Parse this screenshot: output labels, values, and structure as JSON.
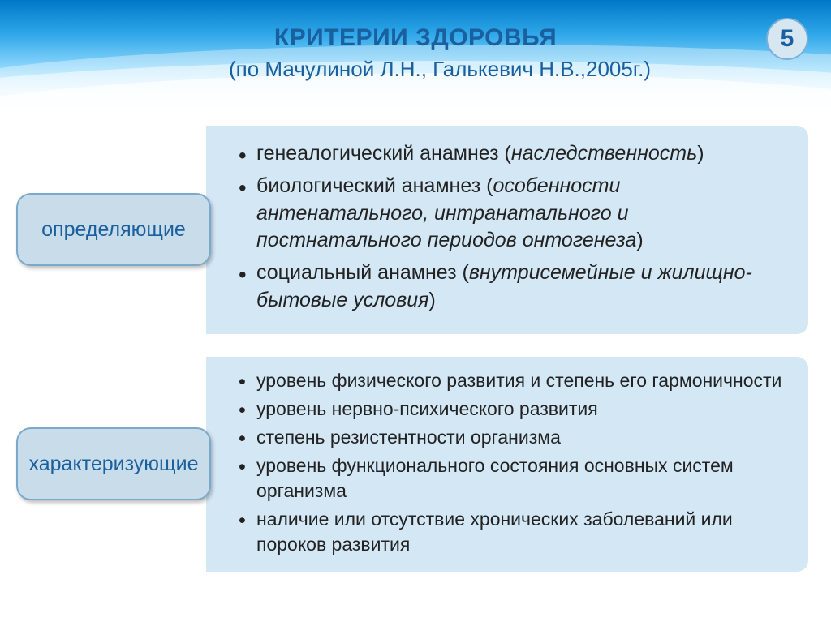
{
  "page_number": "5",
  "title": "КРИТЕРИИ ЗДОРОВЬЯ",
  "subtitle": "(по Мачулиной Л.Н., Галькевич Н.В.,2005г.)",
  "colors": {
    "heading": "#1a5f9e",
    "label_bg": "#c8dcea",
    "label_border": "#7ba9c9",
    "content_bg": "#d3e7f5",
    "badge_bg": "#d7e7f2",
    "badge_border": "#7bafd8",
    "body_text": "#222222"
  },
  "sections": [
    {
      "label": "определяющие",
      "items_html": [
        "генеалогический анамнез (<span class=\"italic\">наследственность</span>)",
        "биологический анамнез (<span class=\"italic\">особенности антенатального, интранатального и постнатального периодов онтогенеза</span>)",
        "социальный анамнез (<span class=\"italic\">внутрисемейные и жилищно-бытовые условия</span>)"
      ]
    },
    {
      "label": "характеризующие",
      "items_html": [
        "уровень физического развития и степень его гармоничности",
        "уровень нервно-психического развития",
        "степень резистентности организма",
        "уровень функционального состояния основных систем организма",
        "наличие или отсутствие хронических заболеваний или пороков развития"
      ]
    }
  ]
}
